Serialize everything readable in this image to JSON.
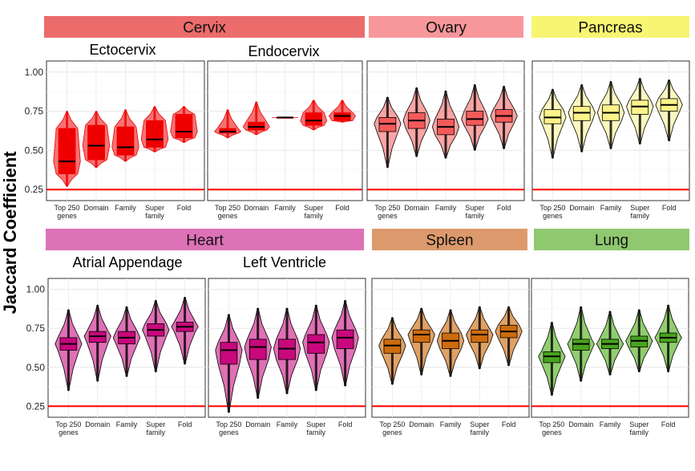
{
  "chart_data": {
    "type": "violin-box",
    "ylabel": "Jaccard Coefficient",
    "ylim": [
      0.2,
      1.05
    ],
    "y_ticks": [
      "0.25",
      "0.50",
      "0.75",
      "1.00"
    ],
    "reference_line": 0.25,
    "reference_color": "#ff0000",
    "categories": [
      "Top 250 genes",
      "Domain",
      "Family",
      "Super family",
      "Fold"
    ],
    "category_lines": [
      [
        "Top 250",
        "genes"
      ],
      [
        "Domain"
      ],
      [
        "Family"
      ],
      [
        "Super",
        "family"
      ],
      [
        "Fold"
      ]
    ],
    "strips": [
      {
        "label": "Cervix",
        "color": "#ec6c6c"
      },
      {
        "label": "Ovary",
        "color": "#f7979b"
      },
      {
        "label": "Pancreas",
        "color": "#f8f572"
      },
      {
        "label": "Heart",
        "color": "#dd72b7"
      },
      {
        "label": "Spleen",
        "color": "#dc9a6c"
      },
      {
        "label": "Lung",
        "color": "#8fc86f"
      }
    ],
    "panels": [
      {
        "tissue": "Cervix",
        "subtitle": "Ectocervix",
        "fill": "#ee0000",
        "outline": "#ee0000",
        "boxes": [
          {
            "q1": 0.35,
            "median": 0.43,
            "q3": 0.64,
            "min": 0.27,
            "max": 0.75
          },
          {
            "q1": 0.44,
            "median": 0.53,
            "q3": 0.66,
            "min": 0.39,
            "max": 0.75
          },
          {
            "q1": 0.47,
            "median": 0.52,
            "q3": 0.65,
            "min": 0.43,
            "max": 0.76
          },
          {
            "q1": 0.52,
            "median": 0.57,
            "q3": 0.69,
            "min": 0.49,
            "max": 0.78
          },
          {
            "q1": 0.58,
            "median": 0.62,
            "q3": 0.73,
            "min": 0.55,
            "max": 0.78
          }
        ]
      },
      {
        "tissue": "Cervix",
        "subtitle": "Endocervix",
        "fill": "#ee0000",
        "outline": "#ee0000",
        "boxes": [
          {
            "q1": 0.61,
            "median": 0.62,
            "q3": 0.64,
            "min": 0.58,
            "max": 0.76
          },
          {
            "q1": 0.63,
            "median": 0.65,
            "q3": 0.68,
            "min": 0.6,
            "max": 0.81
          },
          {
            "q1": 0.71,
            "median": 0.71,
            "q3": 0.71,
            "min": 0.71,
            "max": 0.71
          },
          {
            "q1": 0.66,
            "median": 0.69,
            "q3": 0.74,
            "min": 0.63,
            "max": 0.82
          },
          {
            "q1": 0.69,
            "median": 0.72,
            "q3": 0.74,
            "min": 0.68,
            "max": 0.82
          }
        ]
      },
      {
        "tissue": "Ovary",
        "subtitle": "",
        "fill": "#f55a5a",
        "outline": "#000000",
        "boxes": [
          {
            "q1": 0.62,
            "median": 0.67,
            "q3": 0.71,
            "min": 0.39,
            "max": 0.84
          },
          {
            "q1": 0.64,
            "median": 0.69,
            "q3": 0.74,
            "min": 0.46,
            "max": 0.9
          },
          {
            "q1": 0.6,
            "median": 0.65,
            "q3": 0.7,
            "min": 0.45,
            "max": 0.88
          },
          {
            "q1": 0.66,
            "median": 0.7,
            "q3": 0.75,
            "min": 0.5,
            "max": 0.92
          },
          {
            "q1": 0.68,
            "median": 0.72,
            "q3": 0.76,
            "min": 0.51,
            "max": 0.91
          }
        ]
      },
      {
        "tissue": "Pancreas",
        "subtitle": "",
        "fill": "#fcf38a",
        "outline": "#000000",
        "boxes": [
          {
            "q1": 0.67,
            "median": 0.71,
            "q3": 0.76,
            "min": 0.45,
            "max": 0.89
          },
          {
            "q1": 0.69,
            "median": 0.74,
            "q3": 0.78,
            "min": 0.49,
            "max": 0.92
          },
          {
            "q1": 0.69,
            "median": 0.74,
            "q3": 0.79,
            "min": 0.51,
            "max": 0.94
          },
          {
            "q1": 0.73,
            "median": 0.78,
            "q3": 0.82,
            "min": 0.54,
            "max": 0.96
          },
          {
            "q1": 0.75,
            "median": 0.79,
            "q3": 0.83,
            "min": 0.56,
            "max": 0.95
          }
        ]
      },
      {
        "tissue": "Heart",
        "subtitle": "Atrial Appendage",
        "fill": "#c8087c",
        "fill_violin": "#df70b5",
        "outline": "#000000",
        "boxes": [
          {
            "q1": 0.61,
            "median": 0.65,
            "q3": 0.69,
            "min": 0.35,
            "max": 0.87
          },
          {
            "q1": 0.66,
            "median": 0.7,
            "q3": 0.73,
            "min": 0.41,
            "max": 0.9
          },
          {
            "q1": 0.65,
            "median": 0.69,
            "q3": 0.73,
            "min": 0.44,
            "max": 0.89
          },
          {
            "q1": 0.7,
            "median": 0.74,
            "q3": 0.78,
            "min": 0.47,
            "max": 0.93
          },
          {
            "q1": 0.73,
            "median": 0.76,
            "q3": 0.79,
            "min": 0.52,
            "max": 0.95
          }
        ]
      },
      {
        "tissue": "Heart",
        "subtitle": "Left Ventricle",
        "fill": "#c8087c",
        "fill_violin": "#df70b5",
        "outline": "#000000",
        "boxes": [
          {
            "q1": 0.52,
            "median": 0.61,
            "q3": 0.66,
            "min": 0.21,
            "max": 0.84
          },
          {
            "q1": 0.55,
            "median": 0.63,
            "q3": 0.68,
            "min": 0.3,
            "max": 0.88
          },
          {
            "q1": 0.55,
            "median": 0.62,
            "q3": 0.68,
            "min": 0.33,
            "max": 0.88
          },
          {
            "q1": 0.59,
            "median": 0.66,
            "q3": 0.71,
            "min": 0.35,
            "max": 0.9
          },
          {
            "q1": 0.62,
            "median": 0.69,
            "q3": 0.74,
            "min": 0.38,
            "max": 0.93
          }
        ]
      },
      {
        "tissue": "Spleen",
        "subtitle": "",
        "fill": "#cd6b0f",
        "fill_violin": "#e0a165",
        "outline": "#000000",
        "boxes": [
          {
            "q1": 0.59,
            "median": 0.64,
            "q3": 0.68,
            "min": 0.39,
            "max": 0.82
          },
          {
            "q1": 0.66,
            "median": 0.71,
            "q3": 0.74,
            "min": 0.45,
            "max": 0.88
          },
          {
            "q1": 0.62,
            "median": 0.67,
            "q3": 0.72,
            "min": 0.44,
            "max": 0.87
          },
          {
            "q1": 0.66,
            "median": 0.71,
            "q3": 0.74,
            "min": 0.49,
            "max": 0.89
          },
          {
            "q1": 0.69,
            "median": 0.73,
            "q3": 0.77,
            "min": 0.51,
            "max": 0.89
          }
        ]
      },
      {
        "tissue": "Lung",
        "subtitle": "",
        "fill": "#4aa21e",
        "fill_violin": "#91cd6f",
        "outline": "#000000",
        "boxes": [
          {
            "q1": 0.53,
            "median": 0.57,
            "q3": 0.6,
            "min": 0.32,
            "max": 0.79
          },
          {
            "q1": 0.61,
            "median": 0.65,
            "q3": 0.68,
            "min": 0.41,
            "max": 0.89
          },
          {
            "q1": 0.62,
            "median": 0.65,
            "q3": 0.68,
            "min": 0.45,
            "max": 0.86
          },
          {
            "q1": 0.63,
            "median": 0.67,
            "q3": 0.7,
            "min": 0.47,
            "max": 0.87
          },
          {
            "q1": 0.66,
            "median": 0.69,
            "q3": 0.72,
            "min": 0.47,
            "max": 0.9
          }
        ]
      }
    ]
  }
}
